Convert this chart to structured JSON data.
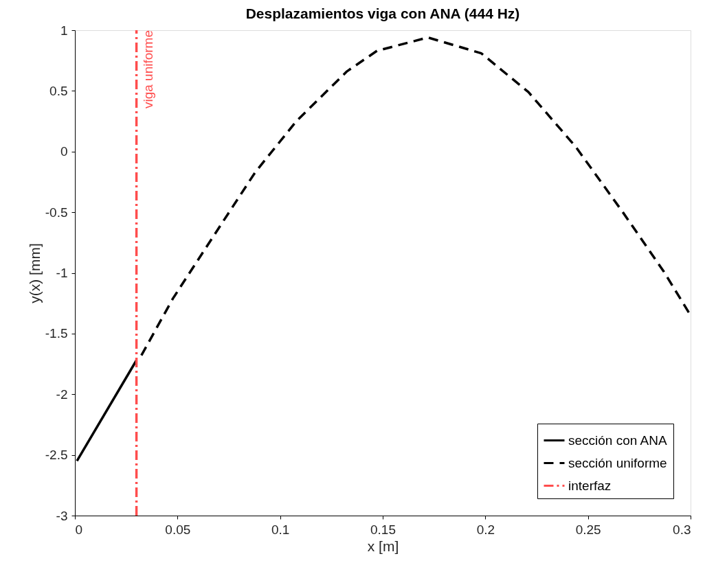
{
  "chart_data": {
    "type": "line",
    "title": "Desplazamientos viga con ANA (444 Hz)",
    "xlabel": "x [m]",
    "ylabel": "y(x) [mm]",
    "xlim": [
      0,
      0.3
    ],
    "xticks": [
      0,
      0.05,
      0.1,
      0.15,
      0.2,
      0.25,
      0.3
    ],
    "ylim": [
      -3,
      1
    ],
    "yticks": [
      -3,
      -2.5,
      -2,
      -1.5,
      -1,
      -0.5,
      0,
      0.5,
      1
    ],
    "grid": false,
    "legend": "bottom right",
    "marker": "none",
    "series": [
      {
        "name": "sección con ANA",
        "color": "#000000",
        "line_style": "solid",
        "x": [
          0.001,
          0.03
        ],
        "values": [
          -2.55,
          -1.72
        ]
      },
      {
        "name": "sección uniforme",
        "color": "#000000",
        "line_style": "dashed",
        "x": [
          0.0324,
          0.0478,
          0.0678,
          0.0879,
          0.1079,
          0.1325,
          0.1472,
          0.172,
          0.198,
          0.221,
          0.244,
          0.267,
          0.287,
          0.3
        ],
        "values": [
          -1.68,
          -1.21,
          -0.69,
          -0.17,
          0.25,
          0.66,
          0.83,
          0.94,
          0.81,
          0.49,
          0.04,
          -0.5,
          -0.99,
          -1.35
        ]
      },
      {
        "name": "interfaz",
        "color": "#ff4d4d",
        "line_style": "dashdot",
        "x": [
          0.03,
          0.03
        ],
        "values": [
          -3,
          1
        ]
      }
    ],
    "annotations": [
      {
        "text": "viga uniforme",
        "x": 0.03,
        "y": 1
      }
    ]
  }
}
